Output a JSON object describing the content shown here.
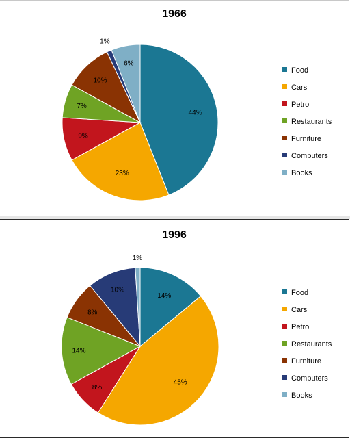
{
  "chart_data": [
    {
      "type": "pie",
      "title": "1966",
      "categories": [
        "Food",
        "Cars",
        "Petrol",
        "Restaurants",
        "Furniture",
        "Computers",
        "Books"
      ],
      "values": [
        44,
        23,
        9,
        7,
        10,
        1,
        6
      ],
      "labels": [
        "44%",
        "23%",
        "9%",
        "7%",
        "10%",
        "1%",
        "6%"
      ],
      "colors": [
        "#1b7793",
        "#f5a700",
        "#c2151d",
        "#6fa324",
        "#8a3303",
        "#273b77",
        "#7fafc6"
      ],
      "legend_position": "right"
    },
    {
      "type": "pie",
      "title": "1996",
      "categories": [
        "Food",
        "Cars",
        "Petrol",
        "Restaurants",
        "Furniture",
        "Computers",
        "Books"
      ],
      "values": [
        14,
        45,
        8,
        14,
        8,
        10,
        1
      ],
      "labels": [
        "14%",
        "45%",
        "8%",
        "14%",
        "8%",
        "10%",
        "1%"
      ],
      "colors": [
        "#1b7793",
        "#f5a700",
        "#c2151d",
        "#6fa324",
        "#8a3303",
        "#273b77",
        "#7fafc6"
      ],
      "legend_position": "right"
    }
  ]
}
